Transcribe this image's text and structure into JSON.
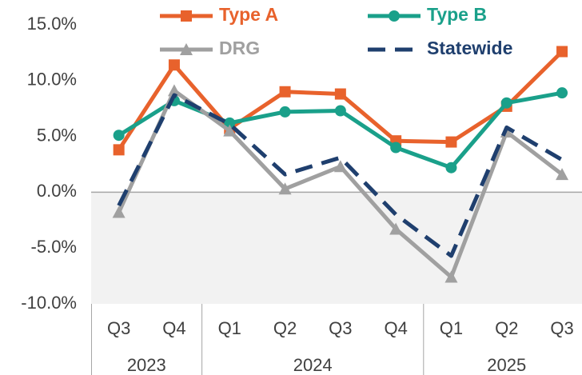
{
  "chart_data": {
    "type": "line",
    "category_groups": [
      {
        "label": "2023",
        "categories": [
          "Q3",
          "Q4"
        ]
      },
      {
        "label": "2024",
        "categories": [
          "Q1",
          "Q2",
          "Q3",
          "Q4"
        ]
      },
      {
        "label": "2025",
        "categories": [
          "Q1",
          "Q2",
          "Q3"
        ]
      }
    ],
    "series": [
      {
        "name": "Type A",
        "color": "#e8622c",
        "marker": "square",
        "values": [
          3.8,
          11.4,
          5.7,
          9.0,
          8.8,
          4.6,
          4.5,
          7.7,
          12.6
        ]
      },
      {
        "name": "Type B",
        "color": "#1aa08a",
        "marker": "circle",
        "values": [
          5.1,
          8.2,
          6.2,
          7.2,
          7.3,
          4.0,
          2.2,
          8.0,
          8.9
        ]
      },
      {
        "name": "DRG",
        "color": "#a0a0a0",
        "marker": "triangle",
        "values": [
          -1.8,
          9.1,
          5.5,
          0.3,
          2.3,
          -3.3,
          -7.6,
          5.4,
          1.6
        ]
      },
      {
        "name": "Statewide",
        "color": "#1f3f6e",
        "dashed": true,
        "values": [
          -1.2,
          8.7,
          6.1,
          1.6,
          3.1,
          -2.0,
          -5.7,
          5.8,
          2.9
        ]
      }
    ],
    "ylim": [
      -10,
      15
    ],
    "yticks": [
      {
        "value": -10,
        "label": "-10.0%"
      },
      {
        "value": -5,
        "label": "-5.0%"
      },
      {
        "value": 0,
        "label": "0.0%"
      },
      {
        "value": 5,
        "label": "5.0%"
      },
      {
        "value": 10,
        "label": "10.0%"
      },
      {
        "value": 15,
        "label": "15.0%"
      }
    ],
    "negative_shading": "#f2f2f2"
  }
}
